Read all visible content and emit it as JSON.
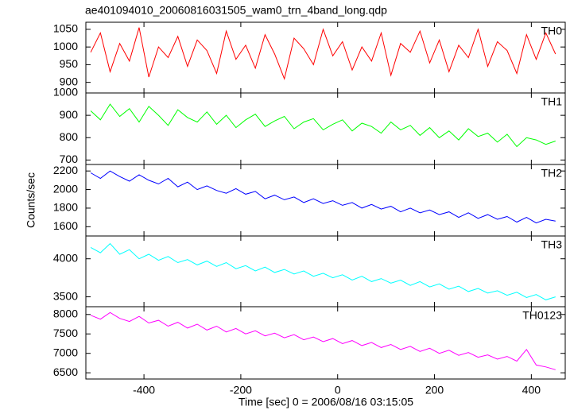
{
  "chart_data": [
    {
      "type": "line",
      "title": "ae401094010_20060816031505_wam0_trn_4band_long.qdp",
      "x": [
        -510,
        -490,
        -470,
        -450,
        -430,
        -410,
        -390,
        -370,
        -350,
        -330,
        -310,
        -290,
        -270,
        -250,
        -230,
        -210,
        -190,
        -170,
        -150,
        -130,
        -110,
        -90,
        -70,
        -50,
        -30,
        -10,
        10,
        30,
        50,
        70,
        90,
        110,
        130,
        150,
        170,
        190,
        210,
        230,
        250,
        270,
        290,
        310,
        330,
        350,
        370,
        390,
        410,
        430,
        450
      ],
      "xlim": [
        -520,
        470
      ],
      "ylim": [
        870,
        1070
      ],
      "yticks": [
        900,
        950,
        1000,
        1050
      ],
      "series": [
        {
          "name": "TH0",
          "color": "#ff0000",
          "values": [
            985,
            1040,
            930,
            1010,
            960,
            1055,
            915,
            1000,
            970,
            1030,
            945,
            1020,
            990,
            925,
            1045,
            965,
            1005,
            940,
            1035,
            980,
            910,
            1025,
            995,
            950,
            1050,
            975,
            1015,
            935,
            1000,
            960,
            1040,
            920,
            1010,
            985,
            1045,
            955,
            1020,
            930,
            1005,
            970,
            1050,
            945,
            1015,
            990,
            925,
            1035,
            965,
            1040,
            980
          ]
        }
      ]
    },
    {
      "type": "line",
      "x": [
        -510,
        -490,
        -470,
        -450,
        -430,
        -410,
        -390,
        -370,
        -350,
        -330,
        -310,
        -290,
        -270,
        -250,
        -230,
        -210,
        -190,
        -170,
        -150,
        -130,
        -110,
        -90,
        -70,
        -50,
        -30,
        -10,
        10,
        30,
        50,
        70,
        90,
        110,
        130,
        150,
        170,
        190,
        210,
        230,
        250,
        270,
        290,
        310,
        330,
        350,
        370,
        390,
        410,
        430,
        450
      ],
      "xlim": [
        -520,
        470
      ],
      "ylim": [
        680,
        1000
      ],
      "yticks": [
        700,
        800,
        900,
        1000
      ],
      "series": [
        {
          "name": "TH1",
          "color": "#00ff00",
          "values": [
            920,
            880,
            950,
            895,
            930,
            870,
            940,
            900,
            855,
            925,
            890,
            870,
            915,
            860,
            900,
            845,
            880,
            905,
            850,
            875,
            895,
            840,
            870,
            885,
            835,
            860,
            880,
            830,
            865,
            850,
            820,
            870,
            835,
            855,
            810,
            845,
            800,
            830,
            790,
            840,
            805,
            820,
            780,
            815,
            760,
            800,
            790,
            770,
            785
          ]
        }
      ]
    },
    {
      "type": "line",
      "ylabel": "Counts/sec",
      "x": [
        -510,
        -490,
        -470,
        -450,
        -430,
        -410,
        -390,
        -370,
        -350,
        -330,
        -310,
        -290,
        -270,
        -250,
        -230,
        -210,
        -190,
        -170,
        -150,
        -130,
        -110,
        -90,
        -70,
        -50,
        -30,
        -10,
        10,
        30,
        50,
        70,
        90,
        110,
        130,
        150,
        170,
        190,
        210,
        230,
        250,
        270,
        290,
        310,
        330,
        350,
        370,
        390,
        410,
        430,
        450
      ],
      "xlim": [
        -520,
        470
      ],
      "ylim": [
        1500,
        2270
      ],
      "yticks": [
        1600,
        1800,
        2000,
        2200
      ],
      "series": [
        {
          "name": "TH2",
          "color": "#0000ff",
          "values": [
            2180,
            2120,
            2200,
            2140,
            2090,
            2160,
            2100,
            2060,
            2120,
            2030,
            2080,
            2000,
            2040,
            1990,
            1960,
            2010,
            1950,
            1980,
            1900,
            1940,
            1890,
            1920,
            1860,
            1900,
            1850,
            1880,
            1830,
            1860,
            1800,
            1840,
            1790,
            1820,
            1760,
            1800,
            1750,
            1780,
            1730,
            1760,
            1700,
            1750,
            1690,
            1730,
            1680,
            1710,
            1650,
            1700,
            1640,
            1680,
            1660
          ]
        }
      ]
    },
    {
      "type": "line",
      "x": [
        -510,
        -490,
        -470,
        -450,
        -430,
        -410,
        -390,
        -370,
        -350,
        -330,
        -310,
        -290,
        -270,
        -250,
        -230,
        -210,
        -190,
        -170,
        -150,
        -130,
        -110,
        -90,
        -70,
        -50,
        -30,
        -10,
        10,
        30,
        50,
        70,
        90,
        110,
        130,
        150,
        170,
        190,
        210,
        230,
        250,
        270,
        290,
        310,
        330,
        350,
        370,
        390,
        410,
        430,
        450
      ],
      "xlim": [
        -520,
        470
      ],
      "ylim": [
        3370,
        4300
      ],
      "yticks": [
        3500,
        4000
      ],
      "series": [
        {
          "name": "TH3",
          "color": "#00ffff",
          "values": [
            4150,
            4080,
            4200,
            4060,
            4120,
            4000,
            4060,
            3980,
            4030,
            3950,
            3990,
            3920,
            3970,
            3900,
            3950,
            3870,
            3910,
            3840,
            3890,
            3820,
            3860,
            3800,
            3840,
            3770,
            3810,
            3750,
            3790,
            3720,
            3770,
            3700,
            3740,
            3680,
            3720,
            3650,
            3700,
            3630,
            3670,
            3600,
            3640,
            3570,
            3610,
            3550,
            3580,
            3520,
            3560,
            3490,
            3530,
            3460,
            3500
          ]
        }
      ]
    },
    {
      "type": "line",
      "xlabel": "Time [sec] 0 = 2006/08/16 03:15:05",
      "x": [
        -510,
        -490,
        -470,
        -450,
        -430,
        -410,
        -390,
        -370,
        -350,
        -330,
        -310,
        -290,
        -270,
        -250,
        -230,
        -210,
        -190,
        -170,
        -150,
        -130,
        -110,
        -90,
        -70,
        -50,
        -30,
        -10,
        10,
        30,
        50,
        70,
        90,
        110,
        130,
        150,
        170,
        190,
        210,
        230,
        250,
        270,
        290,
        310,
        330,
        350,
        370,
        390,
        410,
        430,
        450
      ],
      "xlim": [
        -520,
        470
      ],
      "xticks": [
        -400,
        -200,
        0,
        200,
        400
      ],
      "ylim": [
        6340,
        8200
      ],
      "yticks": [
        6500,
        7000,
        7500,
        8000
      ],
      "series": [
        {
          "name": "TH0123",
          "color": "#ff00ff",
          "values": [
            7980,
            7880,
            8050,
            7900,
            7820,
            7950,
            7780,
            7850,
            7700,
            7800,
            7650,
            7750,
            7600,
            7700,
            7550,
            7640,
            7500,
            7580,
            7450,
            7520,
            7400,
            7480,
            7350,
            7420,
            7300,
            7380,
            7250,
            7330,
            7200,
            7280,
            7150,
            7230,
            7100,
            7180,
            7050,
            7130,
            7000,
            7080,
            6950,
            7020,
            6900,
            6960,
            6850,
            6920,
            6800,
            7100,
            6700,
            6650,
            6580
          ]
        }
      ]
    }
  ]
}
